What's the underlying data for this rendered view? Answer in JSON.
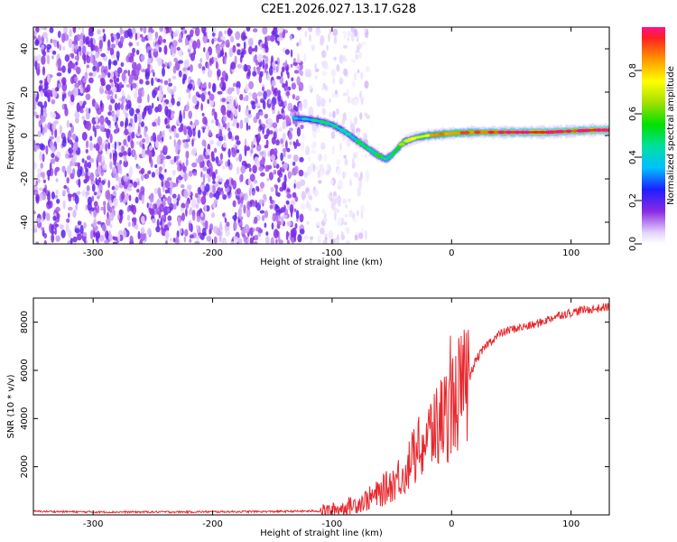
{
  "title": "C2E1.2026.027.13.17.G28",
  "chart_data": [
    {
      "type": "heatmap",
      "name": "spectrogram",
      "xlabel": "Height of straight line (km)",
      "ylabel": "Frequency (Hz)",
      "xlim": [
        -350,
        132
      ],
      "ylim": [
        -50,
        50
      ],
      "x_ticks": [
        -300,
        -200,
        -100,
        0,
        100
      ],
      "y_ticks": [
        -40,
        -20,
        0,
        20,
        40
      ],
      "noise_region_km": [
        -350,
        -100
      ],
      "ridge": {
        "x": [
          -132,
          -120,
          -110,
          -100,
          -90,
          -80,
          -70,
          -62,
          -55,
          -50,
          -45,
          -40,
          -30,
          -20,
          -10,
          0,
          20,
          40,
          60,
          80,
          100,
          120,
          132
        ],
        "y": [
          8,
          7.5,
          6.5,
          5,
          2,
          -2,
          -6,
          -9,
          -11,
          -9,
          -6,
          -3,
          -1,
          0,
          0.5,
          1,
          1.5,
          1.5,
          1.5,
          1.5,
          2,
          2.5,
          2.5
        ],
        "amplitude": [
          0.3,
          0.35,
          0.4,
          0.4,
          0.35,
          0.4,
          0.45,
          0.5,
          0.45,
          0.5,
          0.55,
          0.6,
          0.7,
          0.75,
          0.8,
          0.85,
          0.85,
          0.9,
          0.95,
          0.95,
          0.9,
          0.95,
          0.95
        ]
      },
      "colorbar": {
        "label": "Normalized spectral amplitude",
        "range": [
          0,
          1
        ],
        "ticks": [
          "0.0",
          "0.2",
          "0.4",
          "0.6",
          "0.8"
        ]
      }
    },
    {
      "type": "line",
      "name": "snr",
      "xlabel": "Height of straight line (km)",
      "ylabel": "SNR (10 * v/v)",
      "xlim": [
        -350,
        132
      ],
      "ylim": [
        0,
        9000
      ],
      "x_ticks": [
        -300,
        -200,
        -100,
        0,
        100
      ],
      "y_ticks": [
        2000,
        4000,
        6000,
        8000
      ],
      "series": [
        {
          "name": "SNR",
          "color": "#e8282d",
          "x": [
            -350,
            -300,
            -250,
            -200,
            -150,
            -110,
            -100,
            -90,
            -80,
            -70,
            -60,
            -50,
            -40,
            -30,
            -20,
            -10,
            0,
            5,
            12,
            20,
            30,
            40,
            50,
            60,
            70,
            80,
            90,
            100,
            110,
            120,
            132
          ],
          "y": [
            150,
            120,
            120,
            130,
            140,
            160,
            200,
            300,
            450,
            650,
            900,
            1300,
            1800,
            2500,
            3200,
            3800,
            4500,
            5000,
            5300,
            6400,
            7100,
            7500,
            7700,
            7800,
            7900,
            8100,
            8300,
            8400,
            8500,
            8550,
            8650
          ]
        }
      ]
    }
  ]
}
